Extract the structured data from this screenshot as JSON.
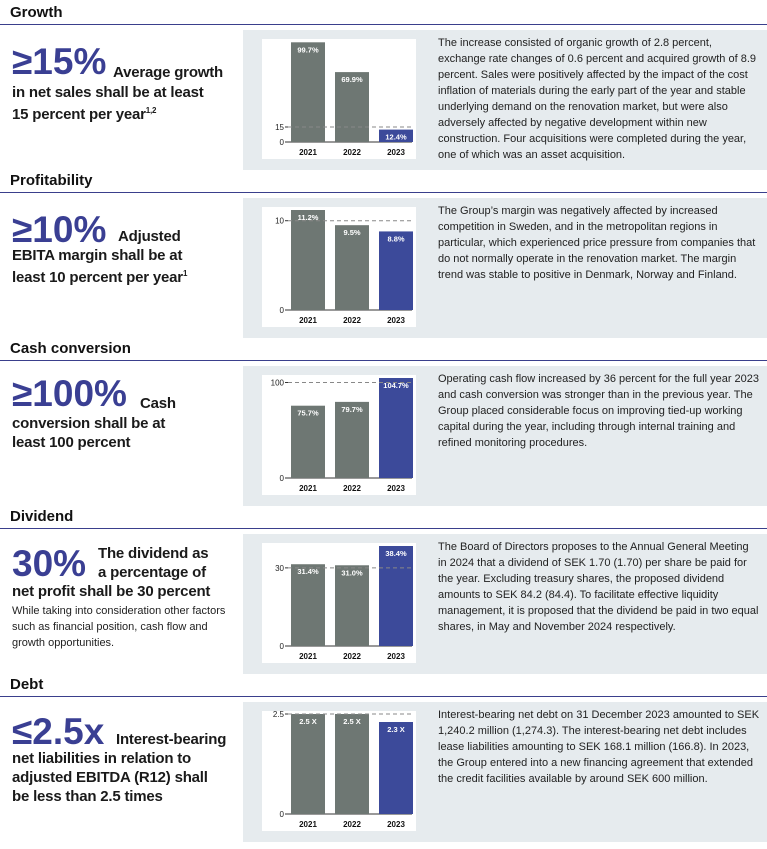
{
  "sections": [
    {
      "title": "Growth",
      "big": "≥15%",
      "kpi_lines": [
        "Average growth",
        "in net sales shall be at least",
        "15 percent per year"
      ],
      "kpi_sup": "1,2",
      "note": "",
      "description": "The increase consisted of organic growth of 2.8 percent, exchange rate changes of 0.6 percent and acquired growth of 8.9 percent. Sales were positively affected by the impact of the cost inflation of materials during the early part of the year and stable underlying demand on the renovation market, but were also adversely affected by negative development within new construction. Four acquisitions were completed during the year, one of which was an asset acquisition."
    },
    {
      "title": "Profitability",
      "big": "≥10%",
      "kpi_lines": [
        "Adjusted",
        "EBITA margin shall be at",
        "least 10 percent per year"
      ],
      "kpi_sup": "1",
      "note": "",
      "description": "The Group’s margin was negatively affected by increased competition in Sweden, and in the metropolitan regions in particular, which experienced price pressure from companies that do not normally operate in the renovation market. The margin trend was stable to positive in Denmark, Norway and Finland."
    },
    {
      "title": "Cash conversion",
      "big": "≥100%",
      "kpi_lines": [
        "Cash",
        "conversion shall be at",
        "least 100 percent"
      ],
      "kpi_sup": "",
      "note": "",
      "description": "Operating cash flow increased by 36 percent for the full year 2023 and cash conversion was stronger than in the previous year. The Group placed considerable focus on improving tied-up working capital during the year, including through internal training and refined monitoring procedures."
    },
    {
      "title": "Dividend",
      "big": "30%",
      "kpi_lines": [
        "The dividend as",
        "a percentage of",
        "net profit shall be 30 percent"
      ],
      "kpi_sup": "",
      "note": "While taking into consideration other factors such as financial position, cash flow and growth opportunities.",
      "description": "The Board of Directors proposes to the Annual General Meeting in 2024 that a dividend of SEK 1.70 (1.70) per share be paid for the year. Excluding treasury shares, the proposed dividend amounts to SEK 84.2 (84.4). To facilitate effective liquidity management, it is proposed that the dividend be paid in two equal shares, in May and November 2024 respectively."
    },
    {
      "title": "Debt",
      "big": "≤2.5x",
      "kpi_lines": [
        "Interest-bearing",
        "net liabilities in relation to",
        "adjusted EBITDA (R12) shall",
        "be less than 2.5 times"
      ],
      "kpi_sup": "",
      "note": "",
      "description": "Interest-bearing net debt on 31 December 2023 amounted to SEK 1,240.2 million (1,274.3). The interest-bearing net debt includes lease liabilities amounting to SEK 168.1 million (166.8). In 2023, the Group entered into a new financing agreement that extended the credit facilities available by around SEK 600 million."
    }
  ],
  "colors": {
    "past_bar": "#6e7773",
    "current_bar": "#3c4a9a",
    "accent": "#3a3f93",
    "panel": "#e6ebee"
  },
  "chart_data": [
    {
      "type": "bar",
      "categories": [
        "2021",
        "2022",
        "2023"
      ],
      "values": [
        99.7,
        69.9,
        12.4
      ],
      "labels": [
        "99.7%",
        "69.9%",
        "12.4%"
      ],
      "target": 15,
      "ylim": [
        0,
        100
      ],
      "yticks": [
        0,
        15
      ]
    },
    {
      "type": "bar",
      "categories": [
        "2021",
        "2022",
        "2023"
      ],
      "values": [
        11.2,
        9.5,
        8.8
      ],
      "labels": [
        "11.2%",
        "9.5%",
        "8.8%"
      ],
      "target": 10,
      "ylim": [
        0,
        11.2
      ],
      "yticks": [
        0,
        10
      ]
    },
    {
      "type": "bar",
      "categories": [
        "2021",
        "2022",
        "2023"
      ],
      "values": [
        75.7,
        79.7,
        104.7
      ],
      "labels": [
        "75.7%",
        "79.7%",
        "104.7%"
      ],
      "target": 100,
      "ylim": [
        0,
        104.7
      ],
      "yticks": [
        0,
        100
      ]
    },
    {
      "type": "bar",
      "categories": [
        "2021",
        "2022",
        "2023"
      ],
      "values": [
        31.4,
        31.0,
        38.4
      ],
      "labels": [
        "31.4%",
        "31.0%",
        "38.4%"
      ],
      "target": 30,
      "ylim": [
        0,
        38.4
      ],
      "yticks": [
        0,
        30
      ]
    },
    {
      "type": "bar",
      "categories": [
        "2021",
        "2022",
        "2023"
      ],
      "values": [
        2.5,
        2.5,
        2.3
      ],
      "labels": [
        "2.5 X",
        "2.5 X",
        "2.3 X"
      ],
      "target": 2.5,
      "ylim": [
        0,
        2.5
      ],
      "yticks": [
        0,
        2.5
      ]
    }
  ]
}
